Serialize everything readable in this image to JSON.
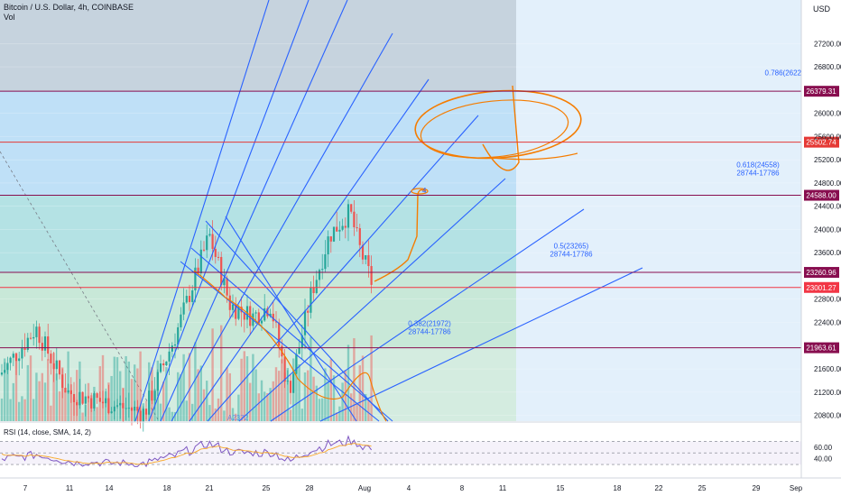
{
  "header": {
    "title": "Bitcoin / U.S. Dollar, 4h, COINBASE",
    "volume_label": "Vol",
    "currency": "USD"
  },
  "chart_data": {
    "type": "candlestick",
    "y_range": [
      20700,
      27950
    ],
    "price_ticks": [
      "27200.00",
      "26800.00",
      "26000.00",
      "25600.00",
      "25200.00",
      "24800.00",
      "24400.00",
      "24000.00",
      "23600.00",
      "22800.00",
      "22400.00",
      "21600.00",
      "21200.00",
      "20800.00"
    ],
    "price_tick_values": [
      27200,
      26800,
      26000,
      25600,
      25200,
      24800,
      24400,
      24000,
      23600,
      22800,
      22400,
      21600,
      21200,
      20800
    ],
    "date_labels": [
      "7",
      "11",
      "14",
      "18",
      "21",
      "25",
      "28",
      "Aug",
      "4",
      "8",
      "11",
      "15",
      "18",
      "22",
      "25",
      "29",
      "Sep"
    ],
    "price_levels": [
      {
        "label": "26379.31",
        "value": 26379.31,
        "color": "#880e4f"
      },
      {
        "label": "25502.74",
        "value": 25502.74,
        "color": "#e53935"
      },
      {
        "label": "24588.00",
        "value": 24588.0,
        "color": "#880e4f"
      },
      {
        "label": "23260.96",
        "value": 23260.96,
        "color": "#880e4f"
      },
      {
        "label": "23001.27",
        "value": 23001.27,
        "color": "#f23645"
      },
      {
        "label": "21963.61",
        "value": 21963.61,
        "color": "#880e4f"
      }
    ],
    "fib_labels": [
      {
        "text": "0.786(2622",
        "value": 26650
      },
      {
        "text": "0.618(24558)",
        "value": 25070
      },
      {
        "text": "28744-17786",
        "value": 24930
      },
      {
        "text": "0.5(23265)",
        "value": 23670
      },
      {
        "text": "28744-17786",
        "value": 23530
      },
      {
        "text": "0.382(21972)",
        "value": 22340
      },
      {
        "text": "28744-17786",
        "value": 22200
      }
    ],
    "annotations": [
      "4",
      "A2372"
    ],
    "rsi": {
      "label": "RSI (14, close, SMA, 14, 2)",
      "ticks": [
        "60.00",
        "40.00"
      ],
      "tick_values": [
        60,
        40
      ]
    },
    "colors": {
      "up": "#26a69a",
      "down": "#ef5350",
      "trend": "#2962ff",
      "highlight": "#f57c00"
    }
  }
}
